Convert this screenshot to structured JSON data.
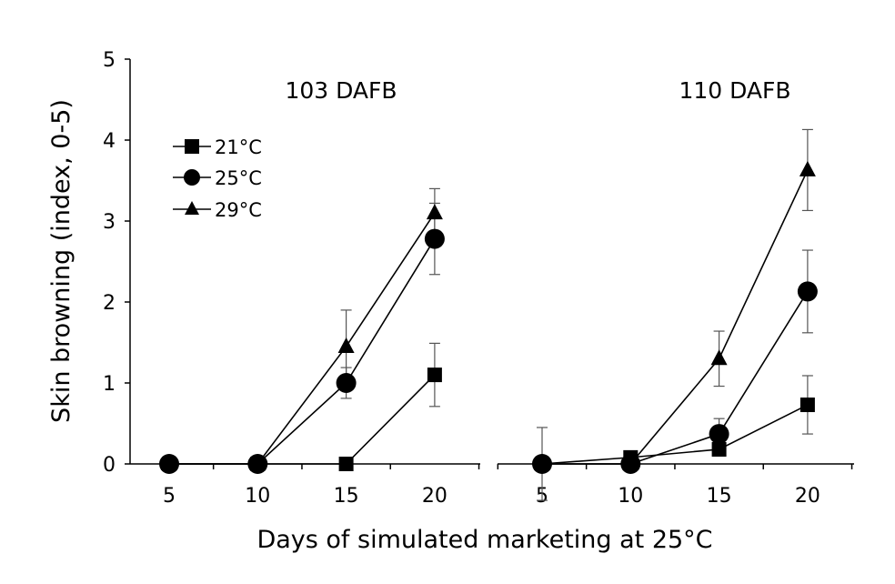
{
  "chart_data": {
    "type": "line",
    "ylabel": "Skin browning (index, 0-5)",
    "xlabel": "Days of simulated marketing at 25°C",
    "ylim": [
      0,
      5
    ],
    "yticks": [
      "0",
      "1",
      "2",
      "3",
      "4",
      "5"
    ],
    "xticks": [
      "5",
      "10",
      "15",
      "20"
    ],
    "grid": false,
    "legend": {
      "placement": "top-left",
      "entries": [
        {
          "label": "21°C",
          "marker": "square"
        },
        {
          "label": "25°C",
          "marker": "circle"
        },
        {
          "label": "29°C",
          "marker": "triangle"
        }
      ]
    },
    "panels": [
      {
        "title": "103 DAFB",
        "x": [
          5,
          10,
          15,
          20
        ],
        "series": [
          {
            "name": "21°C",
            "marker": "square",
            "values": [
              0,
              0,
              0,
              1.1
            ],
            "errors": [
              0,
              0,
              0,
              0.39
            ]
          },
          {
            "name": "25°C",
            "marker": "circle",
            "values": [
              0,
              0,
              1.0,
              2.78
            ],
            "errors": [
              0,
              0,
              0.19,
              0.44
            ]
          },
          {
            "name": "29°C",
            "marker": "triangle",
            "values": [
              0,
              0,
              1.45,
              3.1
            ],
            "errors": [
              0,
              0,
              0.45,
              0.3
            ]
          }
        ]
      },
      {
        "title": "110 DAFB",
        "x": [
          5,
          10,
          15,
          20
        ],
        "series": [
          {
            "name": "21°C",
            "marker": "square",
            "values": [
              0,
              0.08,
              0.18,
              0.73
            ],
            "errors": [
              0,
              0,
              0,
              0.36
            ]
          },
          {
            "name": "25°C",
            "marker": "circle",
            "values": [
              0,
              0,
              0.37,
              2.13
            ],
            "errors": [
              0.45,
              0,
              0.19,
              0.51
            ]
          },
          {
            "name": "29°C",
            "marker": "triangle",
            "values": [
              0,
              0,
              1.3,
              3.63
            ],
            "errors": [
              0,
              0,
              0.34,
              0.5
            ]
          }
        ]
      }
    ]
  }
}
